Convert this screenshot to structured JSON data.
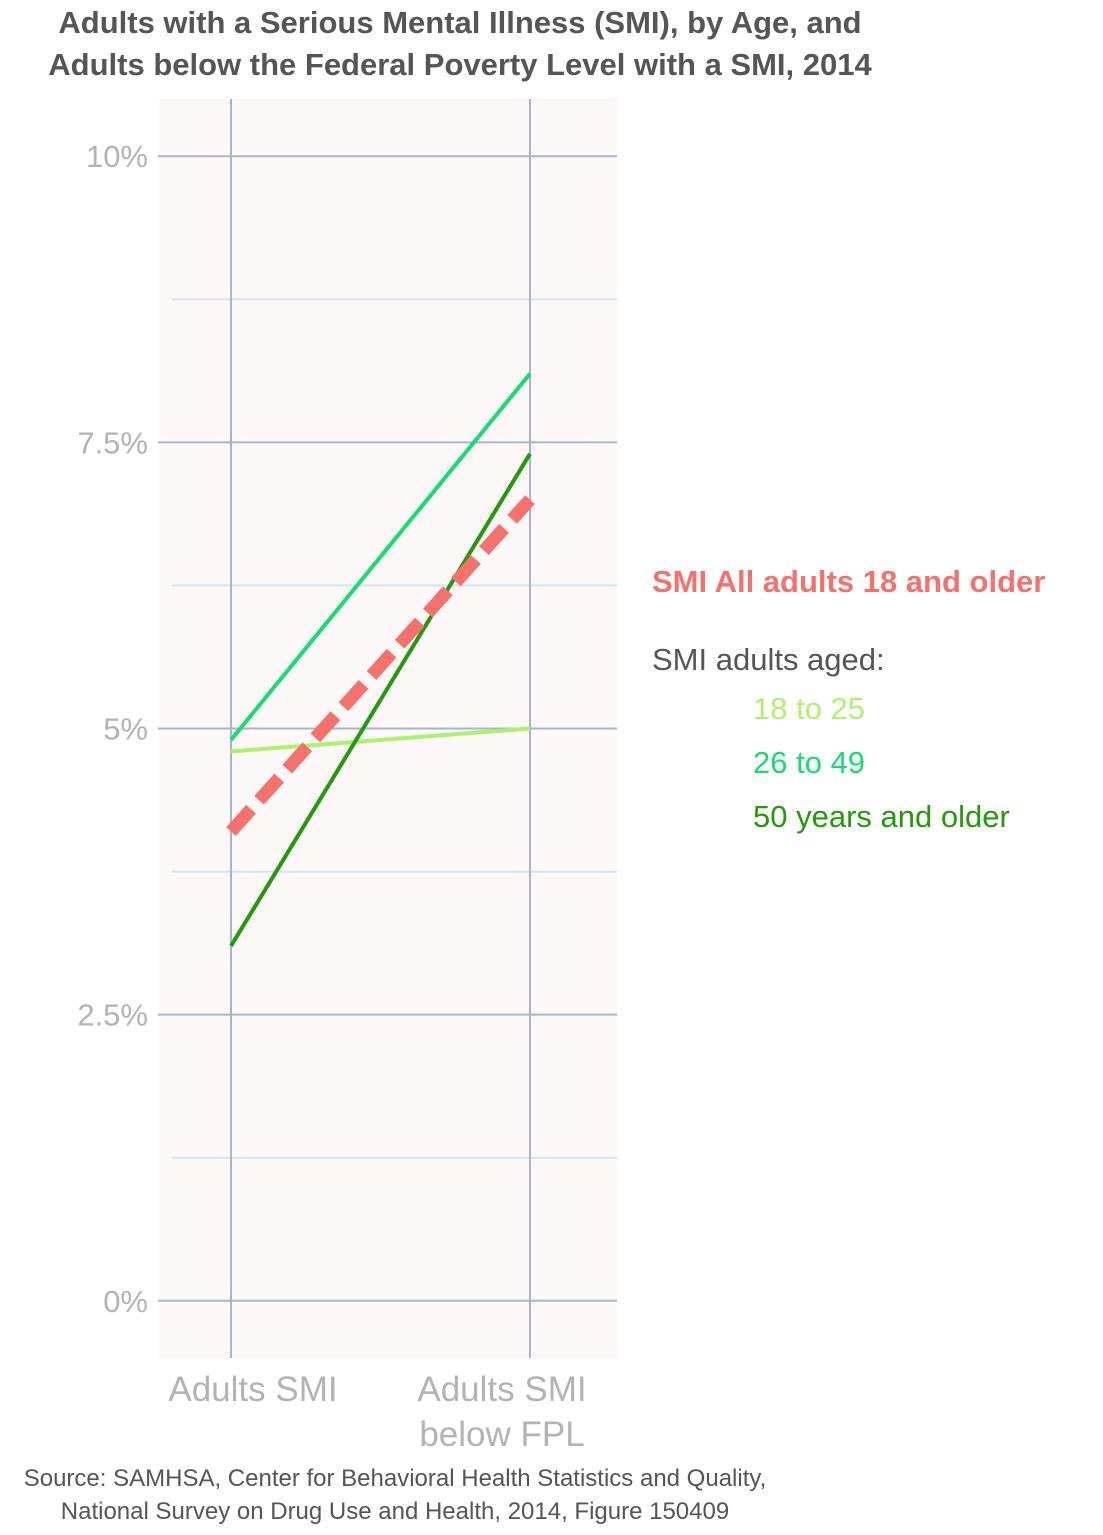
{
  "chart_data": {
    "type": "line",
    "title": [
      "Adults with a Serious Mental Illness (SMI), by Age, and",
      "Adults below the Federal Poverty Level with a SMI, 2014"
    ],
    "categories": [
      "Adults SMI",
      "Adults SMI below FPL"
    ],
    "category_label_lines": [
      [
        "Adults SMI"
      ],
      [
        "Adults SMI",
        "below FPL"
      ]
    ],
    "ylim": [
      -0.5,
      10.5
    ],
    "yticks": [
      0,
      2.5,
      5,
      7.5,
      10
    ],
    "ytick_labels": [
      "0%",
      "2.5%",
      "5%",
      "7.5%",
      "10%"
    ],
    "minor_yticks": [
      1.25,
      3.75,
      6.25,
      8.75
    ],
    "grid": true,
    "legend_position": "right",
    "series": [
      {
        "name": "SMI All adults 18 and older",
        "values": [
          4.1,
          7.0
        ],
        "color": "#f4726b",
        "style": "dashed"
      },
      {
        "name": "18 to 25",
        "values": [
          4.8,
          5.0
        ],
        "color": "#adf26b",
        "style": "solid"
      },
      {
        "name": "26 to 49",
        "values": [
          4.9,
          8.1
        ],
        "color": "#14de70",
        "style": "solid"
      },
      {
        "name": "50 years and older",
        "values": [
          3.1,
          7.4
        ],
        "color": "#229a0b",
        "style": "solid"
      }
    ],
    "legend": {
      "headline": "SMI All adults 18 and older",
      "subtitle": "SMI adults aged:",
      "items": [
        {
          "label": "18 to 25",
          "color": "#adf26b"
        },
        {
          "label": "26 to 49",
          "color": "#14de70"
        },
        {
          "label": "50 years and older",
          "color": "#229a0b"
        }
      ]
    },
    "source": [
      "Source: SAMHSA, Center for Behavioral Health Statistics and Quality,",
      "National Survey on Drug Use and Health, 2014, Figure 150409"
    ]
  }
}
